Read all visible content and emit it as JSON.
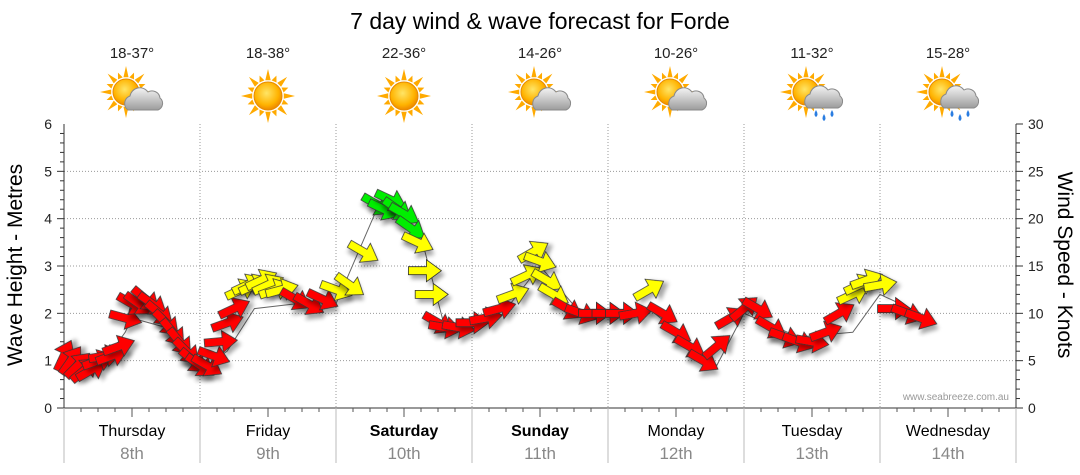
{
  "chart_data": {
    "type": "line",
    "title": "7 day wind & wave forecast for Forde",
    "ylabel_left": "Wave Height - Metres",
    "ylabel_right": "Wind Speed - Knots",
    "ylim_left": [
      0,
      6
    ],
    "ylim_right": [
      0,
      30
    ],
    "yticks_left": [
      "0",
      "1",
      "2",
      "3",
      "4",
      "5",
      "6"
    ],
    "yticks_right": [
      "0",
      "5",
      "10",
      "15",
      "20",
      "25",
      "30"
    ],
    "grid": true,
    "credit": "www.seabreeze.com.au",
    "colors": {
      "low": "#ff0000",
      "medium": "#ffff00",
      "high": "#00ee00",
      "outline": "#333333"
    },
    "days": [
      {
        "name": "Thursday",
        "date": "8th",
        "temp": "18-37°",
        "icon": "sun-cloud-icon",
        "bold": false
      },
      {
        "name": "Friday",
        "date": "9th",
        "temp": "18-38°",
        "icon": "sun-icon",
        "bold": false
      },
      {
        "name": "Saturday",
        "date": "10th",
        "temp": "22-36°",
        "icon": "sun-icon",
        "bold": true
      },
      {
        "name": "Sunday",
        "date": "11th",
        "temp": "14-26°",
        "icon": "sun-cloud-icon",
        "bold": true
      },
      {
        "name": "Monday",
        "date": "12th",
        "temp": "10-26°",
        "icon": "sun-cloud-icon",
        "bold": false
      },
      {
        "name": "Tuesday",
        "date": "13th",
        "temp": "11-32°",
        "icon": "sun-rain-icon",
        "bold": false
      },
      {
        "name": "Wednesday",
        "date": "14th",
        "temp": "15-28°",
        "icon": "sun-rain-icon",
        "bold": false
      }
    ],
    "series": [
      {
        "name": "Wind Speed - Knots",
        "x_unit": "days since start of Thursday 8th",
        "points": [
          {
            "x": 0.0,
            "knots": 5.5,
            "dir": 205
          },
          {
            "x": 0.05,
            "knots": 5.0,
            "dir": 215
          },
          {
            "x": 0.1,
            "knots": 4.5,
            "dir": 225
          },
          {
            "x": 0.15,
            "knots": 4.0,
            "dir": 230
          },
          {
            "x": 0.2,
            "knots": 4.0,
            "dir": 240
          },
          {
            "x": 0.25,
            "knots": 5.0,
            "dir": 250
          },
          {
            "x": 0.3,
            "knots": 5.5,
            "dir": 260
          },
          {
            "x": 0.35,
            "knots": 5.5,
            "dir": 250
          },
          {
            "x": 0.4,
            "knots": 6.5,
            "dir": 250
          },
          {
            "x": 0.45,
            "knots": 9.5,
            "dir": 285
          },
          {
            "x": 0.5,
            "knots": 11.0,
            "dir": 300
          },
          {
            "x": 0.55,
            "knots": 11.0,
            "dir": 305
          },
          {
            "x": 0.6,
            "knots": 11.5,
            "dir": 310
          },
          {
            "x": 0.65,
            "knots": 11.0,
            "dir": 305
          },
          {
            "x": 0.7,
            "knots": 10.0,
            "dir": 310
          },
          {
            "x": 0.75,
            "knots": 9.0,
            "dir": 315
          },
          {
            "x": 0.8,
            "knots": 8.0,
            "dir": 320
          },
          {
            "x": 0.85,
            "knots": 7.0,
            "dir": 320
          },
          {
            "x": 0.9,
            "knots": 6.0,
            "dir": 315
          },
          {
            "x": 0.95,
            "knots": 5.0,
            "dir": 310
          },
          {
            "x": 1.0,
            "knots": 4.5,
            "dir": 305
          },
          {
            "x": 1.05,
            "knots": 4.5,
            "dir": 300
          },
          {
            "x": 1.1,
            "knots": 5.5,
            "dir": 290
          },
          {
            "x": 1.15,
            "knots": 7.0,
            "dir": 265
          },
          {
            "x": 1.2,
            "knots": 9.0,
            "dir": 250
          },
          {
            "x": 1.25,
            "knots": 10.5,
            "dir": 245
          },
          {
            "x": 1.3,
            "knots": 12.5,
            "dir": 245
          },
          {
            "x": 1.35,
            "knots": 13.0,
            "dir": 245
          },
          {
            "x": 1.4,
            "knots": 13.0,
            "dir": 245
          },
          {
            "x": 1.45,
            "knots": 13.5,
            "dir": 245
          },
          {
            "x": 1.5,
            "knots": 13.0,
            "dir": 245
          },
          {
            "x": 1.55,
            "knots": 12.5,
            "dir": 250
          },
          {
            "x": 1.6,
            "knots": 12.5,
            "dir": 255
          },
          {
            "x": 1.7,
            "knots": 11.5,
            "dir": 300
          },
          {
            "x": 1.8,
            "knots": 11.0,
            "dir": 300
          },
          {
            "x": 1.9,
            "knots": 11.5,
            "dir": 295
          },
          {
            "x": 2.0,
            "knots": 12.5,
            "dir": 290
          },
          {
            "x": 2.1,
            "knots": 13.0,
            "dir": 305
          },
          {
            "x": 2.2,
            "knots": 16.5,
            "dir": 300
          },
          {
            "x": 2.3,
            "knots": 21.5,
            "dir": 300
          },
          {
            "x": 2.35,
            "knots": 21.0,
            "dir": 295
          },
          {
            "x": 2.4,
            "knots": 22.0,
            "dir": 295
          },
          {
            "x": 2.45,
            "knots": 21.0,
            "dir": 305
          },
          {
            "x": 2.5,
            "knots": 20.5,
            "dir": 300
          },
          {
            "x": 2.55,
            "knots": 19.0,
            "dir": 305
          },
          {
            "x": 2.6,
            "knots": 17.5,
            "dir": 295
          },
          {
            "x": 2.65,
            "knots": 14.5,
            "dir": 270
          },
          {
            "x": 2.7,
            "knots": 12.0,
            "dir": 270
          },
          {
            "x": 2.75,
            "knots": 9.0,
            "dir": 300
          },
          {
            "x": 2.8,
            "knots": 8.5,
            "dir": 280
          },
          {
            "x": 2.9,
            "knots": 8.5,
            "dir": 280
          },
          {
            "x": 3.0,
            "knots": 9.0,
            "dir": 270
          },
          {
            "x": 3.1,
            "knots": 9.5,
            "dir": 260
          },
          {
            "x": 3.2,
            "knots": 10.5,
            "dir": 255
          },
          {
            "x": 3.3,
            "knots": 12.0,
            "dir": 250
          },
          {
            "x": 3.4,
            "knots": 14.0,
            "dir": 245
          },
          {
            "x": 3.45,
            "knots": 16.5,
            "dir": 240
          },
          {
            "x": 3.5,
            "knots": 15.5,
            "dir": 290
          },
          {
            "x": 3.55,
            "knots": 13.5,
            "dir": 300
          },
          {
            "x": 3.6,
            "knots": 12.0,
            "dir": 300
          },
          {
            "x": 3.7,
            "knots": 10.5,
            "dir": 300
          },
          {
            "x": 3.8,
            "knots": 10.0,
            "dir": 290
          },
          {
            "x": 3.9,
            "knots": 10.0,
            "dir": 270
          },
          {
            "x": 4.0,
            "knots": 10.0,
            "dir": 270
          },
          {
            "x": 4.1,
            "knots": 10.0,
            "dir": 270
          },
          {
            "x": 4.2,
            "knots": 10.0,
            "dir": 260
          },
          {
            "x": 4.3,
            "knots": 12.5,
            "dir": 240
          },
          {
            "x": 4.4,
            "knots": 10.0,
            "dir": 300
          },
          {
            "x": 4.5,
            "knots": 8.0,
            "dir": 300
          },
          {
            "x": 4.6,
            "knots": 6.5,
            "dir": 300
          },
          {
            "x": 4.7,
            "knots": 5.0,
            "dir": 300
          },
          {
            "x": 4.8,
            "knots": 6.5,
            "dir": 230
          },
          {
            "x": 4.9,
            "knots": 9.5,
            "dir": 240
          },
          {
            "x": 5.0,
            "knots": 10.5,
            "dir": 230
          },
          {
            "x": 5.1,
            "knots": 10.5,
            "dir": 300
          },
          {
            "x": 5.2,
            "knots": 8.5,
            "dir": 300
          },
          {
            "x": 5.3,
            "knots": 7.5,
            "dir": 290
          },
          {
            "x": 5.4,
            "knots": 7.0,
            "dir": 290
          },
          {
            "x": 5.5,
            "knots": 7.0,
            "dir": 280
          },
          {
            "x": 5.6,
            "knots": 8.0,
            "dir": 250
          },
          {
            "x": 5.7,
            "knots": 10.0,
            "dir": 240
          },
          {
            "x": 5.8,
            "knots": 12.0,
            "dir": 245
          },
          {
            "x": 5.85,
            "knots": 13.0,
            "dir": 245
          },
          {
            "x": 5.9,
            "knots": 13.5,
            "dir": 250
          },
          {
            "x": 6.0,
            "knots": 13.0,
            "dir": 260
          },
          {
            "x": 6.1,
            "knots": 10.5,
            "dir": 270
          },
          {
            "x": 6.2,
            "knots": 10.0,
            "dir": 290
          },
          {
            "x": 6.3,
            "knots": 9.5,
            "dir": 290
          }
        ]
      },
      {
        "name": "Wave Height - Metres",
        "x_unit": "days since start of Thursday 8th",
        "points": [
          {
            "x": 0.0,
            "m": 0.7
          },
          {
            "x": 0.25,
            "m": 0.8
          },
          {
            "x": 0.45,
            "m": 1.6
          },
          {
            "x": 0.5,
            "m": 1.9
          },
          {
            "x": 0.75,
            "m": 1.7
          },
          {
            "x": 1.0,
            "m": 0.8
          },
          {
            "x": 1.2,
            "m": 1.2
          },
          {
            "x": 1.4,
            "m": 2.1
          },
          {
            "x": 1.7,
            "m": 2.2
          },
          {
            "x": 2.0,
            "m": 2.2
          },
          {
            "x": 2.3,
            "m": 4.2
          },
          {
            "x": 2.6,
            "m": 3.9
          },
          {
            "x": 2.8,
            "m": 1.7
          },
          {
            "x": 3.2,
            "m": 1.9
          },
          {
            "x": 3.5,
            "m": 3.0
          },
          {
            "x": 3.8,
            "m": 2.0
          },
          {
            "x": 4.3,
            "m": 2.1
          },
          {
            "x": 4.6,
            "m": 1.4
          },
          {
            "x": 4.8,
            "m": 0.9
          },
          {
            "x": 5.0,
            "m": 2.0
          },
          {
            "x": 5.4,
            "m": 1.5
          },
          {
            "x": 5.8,
            "m": 1.6
          },
          {
            "x": 6.0,
            "m": 2.4
          },
          {
            "x": 6.3,
            "m": 2.0
          }
        ]
      }
    ]
  }
}
